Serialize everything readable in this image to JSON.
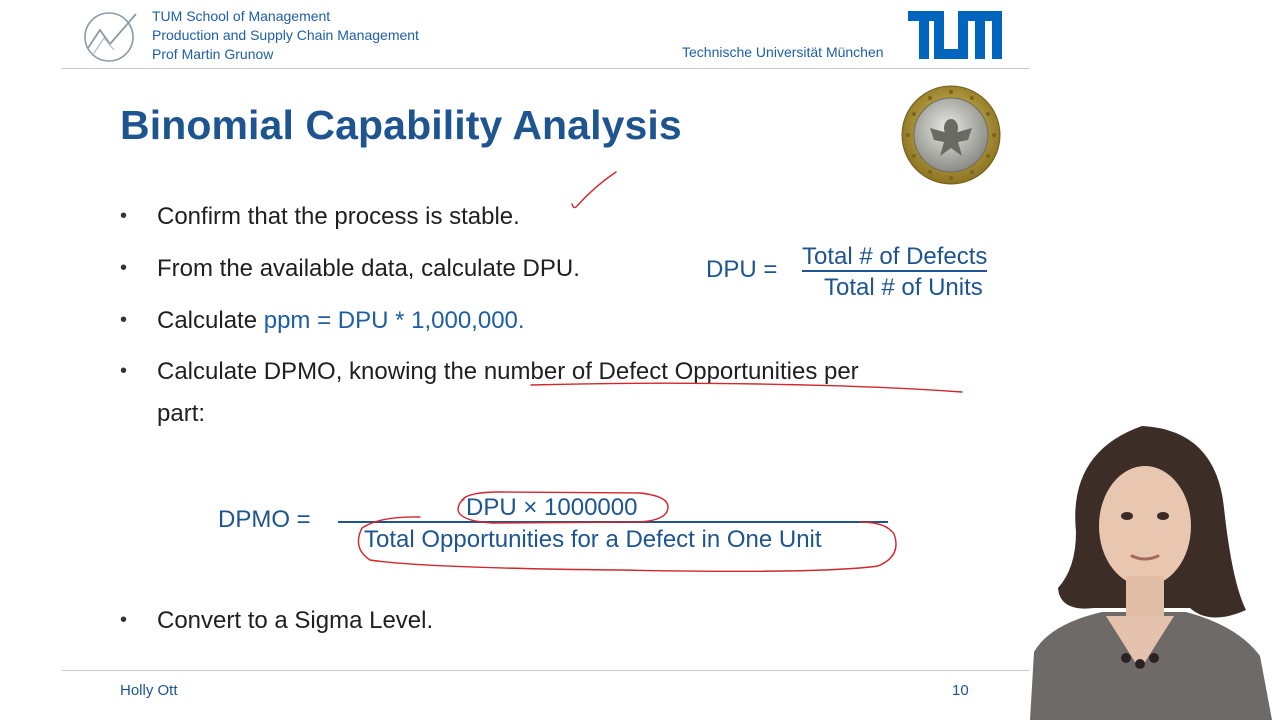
{
  "header": {
    "institution_lines": [
      "TUM School of Management",
      "Production and Supply Chain Management",
      "Prof Martin Grunow"
    ],
    "university": "Technische Universität München",
    "logo_icon": "tum-school-of-management-logo",
    "tum_logo_icon": "tum-logo"
  },
  "slide": {
    "title": "Binomial Capability Analysis",
    "coin_icon": "euro-coin-image",
    "bullets": {
      "b1": "Confirm that the process is stable.",
      "b2": "From the available data, calculate DPU.",
      "b3_prefix": "Calculate ",
      "b3_highlight": "ppm = DPU * 1,000,000.",
      "b4_line1": "Calculate DPMO, knowing the number of Defect Opportunities per",
      "b4_line2": "part:",
      "b5": "Convert to a Sigma Level."
    },
    "dpu_formula": {
      "lhs": "DPU =",
      "numerator": "Total # of Defects",
      "denominator": "Total # of Units"
    },
    "dpmo_formula": {
      "lhs": "DPMO =",
      "numerator": "DPU × 1000000",
      "denominator": "Total Opportunities for a Defect in One Unit"
    }
  },
  "footer": {
    "presenter": "Holly Ott",
    "page": "10"
  },
  "colors": {
    "brand_blue": "#1e5591",
    "annotation_red": "#d0282e",
    "tum_blue": "#0065bd"
  }
}
